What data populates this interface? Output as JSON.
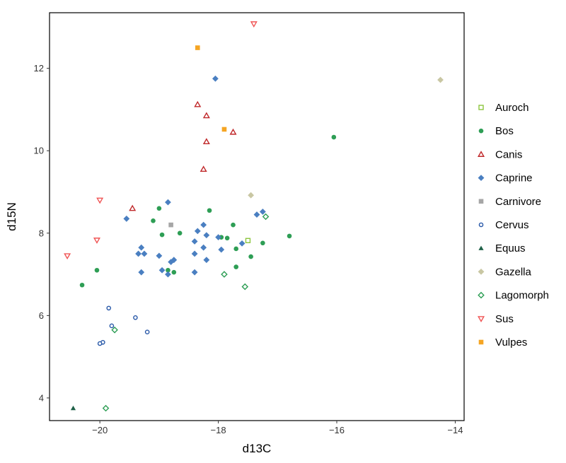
{
  "chart_data": {
    "type": "scatter",
    "xlabel": "d13C",
    "ylabel": "d15N",
    "xlim": [
      -20.85,
      -13.85
    ],
    "ylim": [
      3.45,
      13.35
    ],
    "x_ticks": [
      -20,
      -18,
      -16,
      -14
    ],
    "x_tick_labels": [
      "−20",
      "−18",
      "−16",
      "−14"
    ],
    "y_ticks": [
      4,
      6,
      8,
      10,
      12
    ],
    "y_tick_labels": [
      "4",
      "6",
      "8",
      "10",
      "12"
    ],
    "grid": false,
    "legend_position": "right",
    "series": [
      {
        "name": "Auroch",
        "color": "#8dc63f",
        "marker": "open-square",
        "points": [
          [
            -17.5,
            7.82
          ]
        ]
      },
      {
        "name": "Bos",
        "color": "#2e9e55",
        "marker": "filled-circle",
        "points": [
          [
            -20.3,
            6.74
          ],
          [
            -20.05,
            7.1
          ],
          [
            -19.1,
            8.3
          ],
          [
            -19.0,
            8.6
          ],
          [
            -18.95,
            7.96
          ],
          [
            -18.85,
            7.1
          ],
          [
            -18.75,
            7.05
          ],
          [
            -18.65,
            8.0
          ],
          [
            -18.15,
            8.55
          ],
          [
            -17.95,
            7.9
          ],
          [
            -17.85,
            7.88
          ],
          [
            -17.75,
            8.2
          ],
          [
            -17.7,
            7.62
          ],
          [
            -17.7,
            7.18
          ],
          [
            -17.45,
            7.43
          ],
          [
            -17.25,
            7.76
          ],
          [
            -16.8,
            7.93
          ],
          [
            -16.05,
            10.33
          ]
        ]
      },
      {
        "name": "Canis",
        "color": "#c0282a",
        "marker": "open-triangle-up",
        "points": [
          [
            -19.45,
            8.6
          ],
          [
            -18.35,
            11.12
          ],
          [
            -18.2,
            10.85
          ],
          [
            -18.2,
            10.22
          ],
          [
            -18.25,
            9.55
          ],
          [
            -17.75,
            10.45
          ]
        ]
      },
      {
        "name": "Caprine",
        "color": "#4a7fc1",
        "marker": "filled-diamond",
        "points": [
          [
            -18.05,
            11.75
          ],
          [
            -19.55,
            8.35
          ],
          [
            -18.85,
            8.75
          ],
          [
            -19.35,
            7.5
          ],
          [
            -19.3,
            7.65
          ],
          [
            -19.25,
            7.5
          ],
          [
            -19.3,
            7.05
          ],
          [
            -19.0,
            7.45
          ],
          [
            -18.95,
            7.1
          ],
          [
            -18.85,
            7.0
          ],
          [
            -18.75,
            7.35
          ],
          [
            -18.8,
            7.3
          ],
          [
            -18.4,
            7.8
          ],
          [
            -18.35,
            8.05
          ],
          [
            -18.25,
            8.2
          ],
          [
            -18.2,
            7.95
          ],
          [
            -18.4,
            7.5
          ],
          [
            -18.25,
            7.65
          ],
          [
            -18.2,
            7.35
          ],
          [
            -18.4,
            7.05
          ],
          [
            -18.0,
            7.9
          ],
          [
            -17.95,
            7.6
          ],
          [
            -17.6,
            7.75
          ],
          [
            -17.35,
            8.45
          ],
          [
            -17.25,
            8.52
          ]
        ]
      },
      {
        "name": "Carnivore",
        "color": "#a6a6a6",
        "marker": "filled-square",
        "points": [
          [
            -18.8,
            8.2
          ]
        ]
      },
      {
        "name": "Cervus",
        "color": "#2858a8",
        "marker": "open-circle",
        "points": [
          [
            -19.85,
            6.18
          ],
          [
            -19.8,
            5.75
          ],
          [
            -19.95,
            5.35
          ],
          [
            -20.0,
            5.32
          ],
          [
            -19.4,
            5.95
          ],
          [
            -19.2,
            5.6
          ]
        ]
      },
      {
        "name": "Equus",
        "color": "#1e6047",
        "marker": "filled-triangle-up",
        "points": [
          [
            -20.45,
            3.75
          ]
        ]
      },
      {
        "name": "Gazella",
        "color": "#c9c7a3",
        "marker": "filled-diamond",
        "points": [
          [
            -17.45,
            8.92
          ],
          [
            -14.25,
            11.72
          ]
        ]
      },
      {
        "name": "Lagomorph",
        "color": "#2e9e55",
        "marker": "open-diamond",
        "points": [
          [
            -19.75,
            5.65
          ],
          [
            -19.9,
            3.75
          ],
          [
            -17.9,
            7.0
          ],
          [
            -17.55,
            6.7
          ],
          [
            -17.2,
            8.4
          ]
        ]
      },
      {
        "name": "Sus",
        "color": "#f05555",
        "marker": "open-triangle-down",
        "points": [
          [
            -20.55,
            7.45
          ],
          [
            -20.0,
            8.8
          ],
          [
            -20.05,
            7.83
          ],
          [
            -17.4,
            13.08
          ]
        ]
      },
      {
        "name": "Vulpes",
        "color": "#f5a523",
        "marker": "filled-square",
        "points": [
          [
            -18.35,
            12.5
          ],
          [
            -17.9,
            10.52
          ]
        ]
      }
    ]
  }
}
